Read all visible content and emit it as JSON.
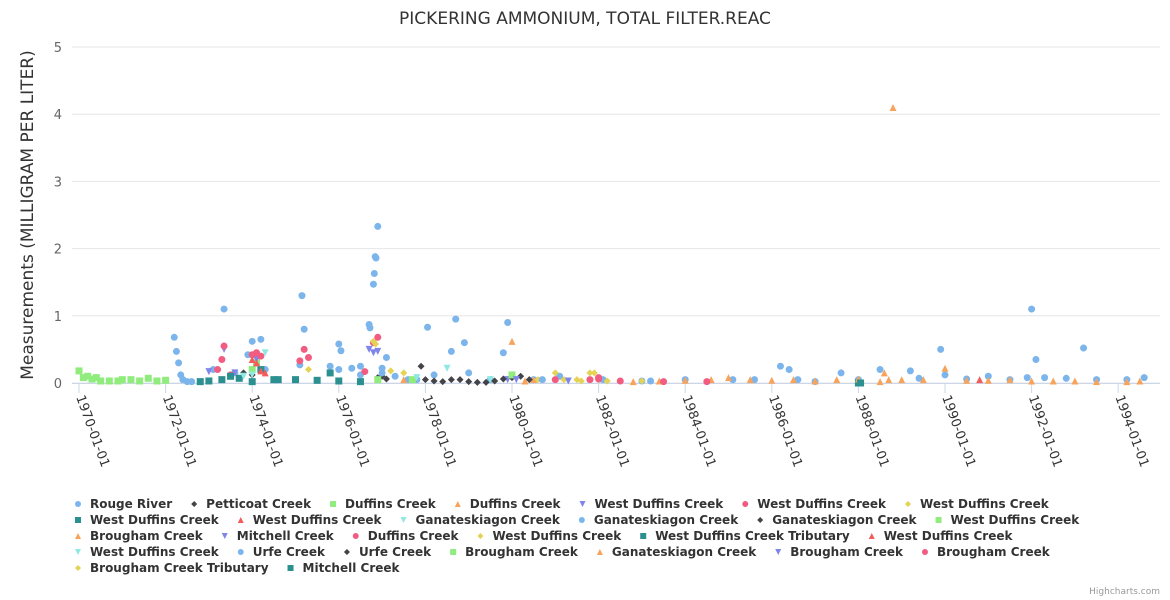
{
  "chart_data": {
    "type": "scatter",
    "title": "PICKERING AMMONIUM, TOTAL FILTER.REAC",
    "xlabel": "",
    "ylabel": "Measurements (MILLIGRAM PER LITER)",
    "ylim": [
      0,
      5
    ],
    "yticks": [
      "0",
      "1",
      "2",
      "3",
      "4",
      "5"
    ],
    "xlim": [
      1969.8,
      1994.9
    ],
    "xticks": [
      "1970-01-01",
      "1972-01-01",
      "1974-01-01",
      "1976-01-01",
      "1978-01-01",
      "1980-01-01",
      "1982-01-01",
      "1984-01-01",
      "1986-01-01",
      "1988-01-01",
      "1990-01-01",
      "1992-01-01",
      "1994-01-01"
    ],
    "grid": true,
    "legend_position": "bottom",
    "credits": "Highcharts.com",
    "series": [
      {
        "name": "Rouge River",
        "symbol": "circle",
        "color": "#7cb5ec",
        "points": [
          [
            1972.2,
            0.68
          ],
          [
            1972.25,
            0.47
          ],
          [
            1972.3,
            0.3
          ],
          [
            1972.35,
            0.12
          ],
          [
            1972.4,
            0.05
          ],
          [
            1972.5,
            0.02
          ],
          [
            1972.6,
            0.02
          ],
          [
            1973.1,
            0.2
          ],
          [
            1973.35,
            1.1
          ],
          [
            1973.6,
            0.15
          ],
          [
            1973.9,
            0.42
          ],
          [
            1974.0,
            0.62
          ],
          [
            1974.1,
            0.3
          ],
          [
            1974.2,
            0.65
          ],
          [
            1974.3,
            0.2
          ],
          [
            1975.1,
            0.27
          ],
          [
            1975.15,
            1.3
          ],
          [
            1975.2,
            0.8
          ],
          [
            1975.8,
            0.25
          ],
          [
            1976.0,
            0.58
          ],
          [
            1976.05,
            0.48
          ],
          [
            1976.3,
            0.22
          ],
          [
            1976.5,
            0.12
          ],
          [
            1976.7,
            0.87
          ],
          [
            1976.72,
            0.82
          ],
          [
            1976.8,
            1.47
          ],
          [
            1976.82,
            1.63
          ],
          [
            1976.84,
            1.88
          ],
          [
            1976.86,
            1.86
          ],
          [
            1976.9,
            2.33
          ],
          [
            1977.0,
            0.22
          ],
          [
            1977.1,
            0.38
          ],
          [
            1977.3,
            0.1
          ],
          [
            1977.6,
            0.05
          ],
          [
            1977.8,
            0.05
          ],
          [
            1978.05,
            0.83
          ],
          [
            1978.2,
            0.12
          ],
          [
            1978.6,
            0.47
          ],
          [
            1978.7,
            0.95
          ],
          [
            1978.9,
            0.6
          ],
          [
            1979.0,
            0.15
          ],
          [
            1979.5,
            0.05
          ],
          [
            1979.8,
            0.45
          ],
          [
            1979.9,
            0.9
          ],
          [
            1980.5,
            0.05
          ],
          [
            1981.1,
            0.1
          ],
          [
            1982.1,
            0.05
          ],
          [
            1983.0,
            0.03
          ],
          [
            1984.0,
            0.05
          ],
          [
            1985.1,
            0.05
          ],
          [
            1985.6,
            0.05
          ],
          [
            1986.2,
            0.25
          ],
          [
            1986.4,
            0.2
          ],
          [
            1986.6,
            0.05
          ],
          [
            1987.0,
            0.02
          ],
          [
            1987.6,
            0.15
          ],
          [
            1988.0,
            0.05
          ],
          [
            1988.5,
            0.2
          ],
          [
            1989.2,
            0.18
          ],
          [
            1989.4,
            0.07
          ],
          [
            1989.9,
            0.5
          ],
          [
            1990.0,
            0.12
          ],
          [
            1990.5,
            0.06
          ],
          [
            1991.0,
            0.1
          ],
          [
            1991.5,
            0.05
          ],
          [
            1991.9,
            0.08
          ],
          [
            1992.0,
            1.1
          ],
          [
            1992.1,
            0.35
          ],
          [
            1992.3,
            0.08
          ],
          [
            1992.8,
            0.07
          ],
          [
            1993.2,
            0.52
          ],
          [
            1993.5,
            0.05
          ],
          [
            1994.2,
            0.05
          ],
          [
            1994.6,
            0.08
          ]
        ]
      },
      {
        "name": "Petticoat Creek",
        "symbol": "diamond",
        "color": "#434348",
        "points": [
          [
            1973.8,
            0.15
          ],
          [
            1974.0,
            0.12
          ],
          [
            1976.9,
            0.08
          ],
          [
            1977.0,
            0.1
          ],
          [
            1977.1,
            0.06
          ]
        ]
      },
      {
        "name": "Duffins Creek",
        "symbol": "square",
        "color": "#90ed7d",
        "points": [
          [
            1970.0,
            0.18
          ],
          [
            1970.1,
            0.08
          ],
          [
            1970.2,
            0.1
          ],
          [
            1970.3,
            0.06
          ],
          [
            1970.4,
            0.08
          ],
          [
            1970.5,
            0.03
          ],
          [
            1970.7,
            0.03
          ],
          [
            1970.9,
            0.03
          ],
          [
            1971.0,
            0.05
          ],
          [
            1971.2,
            0.05
          ],
          [
            1971.4,
            0.03
          ],
          [
            1971.6,
            0.07
          ],
          [
            1971.8,
            0.03
          ],
          [
            1972.0,
            0.04
          ],
          [
            1974.0,
            0.2
          ],
          [
            1974.1,
            0.3
          ]
        ]
      },
      {
        "name": "Duffins Creek",
        "symbol": "triangle",
        "color": "#f7a35c",
        "points": [
          [
            1977.5,
            0.05
          ],
          [
            1980.0,
            0.62
          ],
          [
            1980.5,
            0.05
          ]
        ]
      },
      {
        "name": "West Duffins Creek",
        "symbol": "triangle-down",
        "color": "#8085e9",
        "points": [
          [
            1973.0,
            0.17
          ],
          [
            1973.35,
            0.5
          ],
          [
            1973.6,
            0.15
          ],
          [
            1974.1,
            0.35
          ],
          [
            1976.7,
            0.5
          ],
          [
            1976.8,
            0.45
          ],
          [
            1976.9,
            0.47
          ],
          [
            1979.9,
            0.05
          ]
        ]
      },
      {
        "name": "West Duffins Creek",
        "symbol": "circle",
        "color": "#f15c80",
        "points": [
          [
            1973.2,
            0.2
          ],
          [
            1973.3,
            0.35
          ],
          [
            1973.35,
            0.55
          ],
          [
            1973.5,
            0.12
          ],
          [
            1974.0,
            0.42
          ],
          [
            1974.1,
            0.45
          ],
          [
            1974.2,
            0.4
          ],
          [
            1975.1,
            0.33
          ],
          [
            1975.2,
            0.5
          ],
          [
            1975.3,
            0.38
          ],
          [
            1976.6,
            0.17
          ],
          [
            1976.8,
            0.6
          ],
          [
            1976.9,
            0.68
          ],
          [
            1981.8,
            0.05
          ]
        ]
      },
      {
        "name": "West Duffins Creek",
        "symbol": "diamond",
        "color": "#e4d354",
        "points": [
          [
            1975.3,
            0.2
          ],
          [
            1976.8,
            0.62
          ],
          [
            1976.85,
            0.58
          ],
          [
            1977.2,
            0.18
          ],
          [
            1977.5,
            0.15
          ],
          [
            1981.0,
            0.15
          ],
          [
            1981.5,
            0.05
          ],
          [
            1981.8,
            0.15
          ],
          [
            1982.0,
            0.05
          ],
          [
            1982.5,
            0.03
          ],
          [
            1983.0,
            0.03
          ]
        ]
      },
      {
        "name": "West Duffins Creek",
        "symbol": "square",
        "color": "#2b908f",
        "points": [
          [
            1972.8,
            0.02
          ],
          [
            1973.0,
            0.03
          ],
          [
            1973.3,
            0.05
          ],
          [
            1973.5,
            0.1
          ],
          [
            1973.7,
            0.07
          ],
          [
            1974.0,
            0.02
          ],
          [
            1974.2,
            0.2
          ],
          [
            1974.5,
            0.05
          ],
          [
            1975.0,
            0.05
          ],
          [
            1975.5,
            0.04
          ],
          [
            1976.0,
            0.03
          ],
          [
            1976.5,
            0.02
          ],
          [
            1975.8,
            0.15
          ],
          [
            1988.0,
            0.0
          ]
        ]
      },
      {
        "name": "West Duffins Creek",
        "symbol": "triangle",
        "color": "#f45b5b",
        "points": [
          [
            1974.0,
            0.35
          ],
          [
            1974.1,
            0.3
          ],
          [
            1974.2,
            0.18
          ],
          [
            1974.3,
            0.15
          ]
        ]
      },
      {
        "name": "Ganateskiagon Creek",
        "symbol": "triangle-down",
        "color": "#91e8e1",
        "points": [
          [
            1974.3,
            0.45
          ],
          [
            1973.8,
            0.1
          ],
          [
            1974.0,
            0.12
          ],
          [
            1978.5,
            0.22
          ],
          [
            1979.5,
            0.05
          ]
        ]
      },
      {
        "name": "Ganateskiagon Creek",
        "symbol": "circle",
        "color": "#7cb5ec",
        "points": [
          [
            1976.0,
            0.2
          ],
          [
            1976.5,
            0.25
          ],
          [
            1977.0,
            0.15
          ]
        ]
      },
      {
        "name": "Ganateskiagon Creek",
        "symbol": "diamond",
        "color": "#434348",
        "points": [
          [
            1977.9,
            0.25
          ],
          [
            1978.0,
            0.05
          ],
          [
            1978.2,
            0.03
          ],
          [
            1978.4,
            0.02
          ],
          [
            1978.6,
            0.05
          ],
          [
            1978.8,
            0.05
          ],
          [
            1979.0,
            0.02
          ],
          [
            1979.2,
            0.01
          ],
          [
            1979.4,
            0.01
          ],
          [
            1979.6,
            0.03
          ],
          [
            1979.8,
            0.06
          ],
          [
            1980.0,
            0.08
          ],
          [
            1980.2,
            0.1
          ]
        ]
      },
      {
        "name": "West Duffins Creek",
        "symbol": "square",
        "color": "#90ed7d",
        "points": [
          [
            1977.7,
            0.05
          ],
          [
            1980.0,
            0.12
          ]
        ]
      },
      {
        "name": "Brougham Creek",
        "symbol": "triangle",
        "color": "#f7a35c",
        "points": [
          [
            1980.3,
            0.03
          ],
          [
            1982.8,
            0.02
          ],
          [
            1983.4,
            0.03
          ],
          [
            1984.0,
            0.04
          ],
          [
            1984.6,
            0.05
          ],
          [
            1985.0,
            0.08
          ],
          [
            1985.5,
            0.05
          ],
          [
            1986.0,
            0.04
          ],
          [
            1986.5,
            0.05
          ],
          [
            1987.0,
            0.03
          ],
          [
            1987.5,
            0.05
          ],
          [
            1988.0,
            0.06
          ],
          [
            1988.5,
            0.02
          ],
          [
            1989.0,
            0.05
          ],
          [
            1989.5,
            0.05
          ],
          [
            1990.0,
            0.22
          ],
          [
            1990.5,
            0.04
          ],
          [
            1991.0,
            0.04
          ],
          [
            1991.5,
            0.05
          ],
          [
            1992.0,
            0.03
          ],
          [
            1992.5,
            0.03
          ],
          [
            1993.0,
            0.03
          ],
          [
            1993.5,
            0.02
          ],
          [
            1994.2,
            0.02
          ],
          [
            1994.5,
            0.03
          ]
        ]
      },
      {
        "name": "Mitchell Creek",
        "symbol": "triangle-down",
        "color": "#8085e9",
        "points": [
          [
            1980.1,
            0.05
          ]
        ]
      },
      {
        "name": "Duffins Creek",
        "symbol": "circle",
        "color": "#f15c80",
        "points": [
          [
            1981.0,
            0.05
          ],
          [
            1982.0,
            0.08
          ],
          [
            1982.5,
            0.03
          ],
          [
            1983.5,
            0.02
          ],
          [
            1984.5,
            0.02
          ]
        ]
      },
      {
        "name": "West Duffins Creek",
        "symbol": "diamond",
        "color": "#e4d354",
        "points": [
          [
            1980.6,
            0.05
          ],
          [
            1981.2,
            0.05
          ],
          [
            1981.6,
            0.03
          ],
          [
            1982.2,
            0.03
          ]
        ]
      },
      {
        "name": "West Duffins Creek Tributary",
        "symbol": "square",
        "color": "#2b908f",
        "points": [
          [
            1974.6,
            0.05
          ]
        ]
      },
      {
        "name": "West Duffins Creek",
        "symbol": "triangle",
        "color": "#f45b5b",
        "points": [
          [
            1990.8,
            0.05
          ]
        ]
      },
      {
        "name": "West Duffins Creek",
        "symbol": "triangle-down",
        "color": "#91e8e1",
        "points": [
          [
            1977.8,
            0.08
          ]
        ]
      },
      {
        "name": "Urfe Creek",
        "symbol": "circle",
        "color": "#7cb5ec",
        "points": [
          [
            1980.7,
            0.05
          ],
          [
            1983.2,
            0.03
          ]
        ]
      },
      {
        "name": "Urfe Creek",
        "symbol": "diamond",
        "color": "#434348",
        "points": [
          [
            1980.4,
            0.05
          ]
        ]
      },
      {
        "name": "Brougham Creek",
        "symbol": "square",
        "color": "#90ed7d",
        "points": [
          [
            1976.9,
            0.05
          ]
        ]
      },
      {
        "name": "Ganateskiagon Creek",
        "symbol": "triangle",
        "color": "#f7a35c",
        "points": [
          [
            1988.8,
            4.1
          ],
          [
            1988.6,
            0.15
          ],
          [
            1988.7,
            0.05
          ]
        ]
      },
      {
        "name": "Brougham Creek",
        "symbol": "triangle-down",
        "color": "#8085e9",
        "points": [
          [
            1981.3,
            0.03
          ]
        ]
      },
      {
        "name": "Brougham Creek",
        "symbol": "circle",
        "color": "#f15c80",
        "points": [
          [
            1982.0,
            0.06
          ]
        ]
      },
      {
        "name": "Brougham Creek Tributary",
        "symbol": "diamond",
        "color": "#e4d354",
        "points": [
          [
            1981.9,
            0.15
          ]
        ]
      },
      {
        "name": "Mitchell Creek",
        "symbol": "square",
        "color": "#2b908f",
        "points": [
          [
            1988.05,
            0.0
          ]
        ]
      }
    ]
  }
}
